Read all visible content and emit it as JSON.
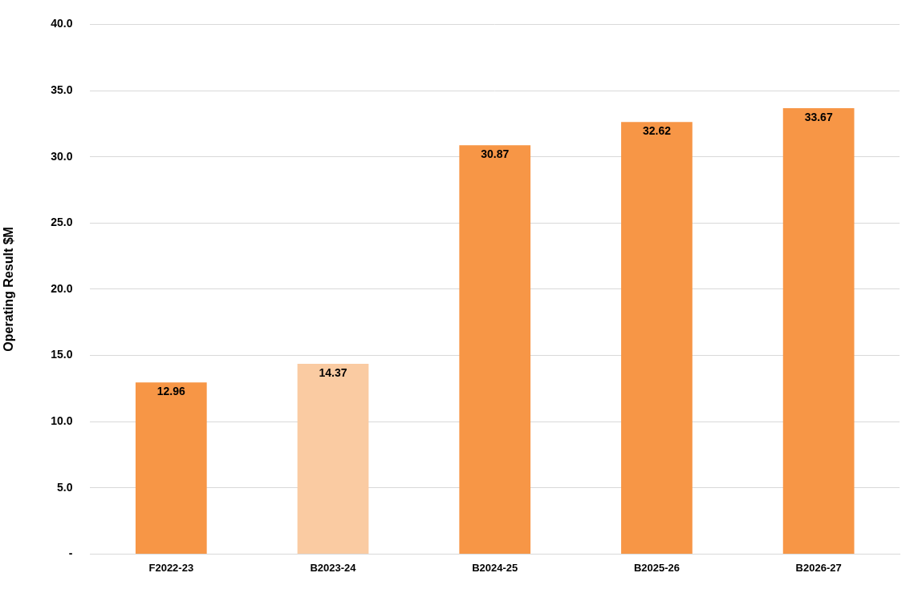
{
  "chart_data": {
    "type": "bar",
    "y_label": "Operating Result $M",
    "categories": [
      "F2022-23",
      "B2023-24",
      "B2024-25",
      "B2025-26",
      "B2026-27"
    ],
    "values": [
      12.96,
      14.37,
      30.87,
      32.62,
      33.67
    ],
    "colors": [
      "#f79646",
      "#facba2",
      "#f79646",
      "#f79646",
      "#f79646"
    ],
    "ylim": [
      0,
      40
    ],
    "yticks": [
      {
        "value": 0,
        "label": "-"
      },
      {
        "value": 5,
        "label": "5.0"
      },
      {
        "value": 10,
        "label": "10.0"
      },
      {
        "value": 15,
        "label": "15.0"
      },
      {
        "value": 20,
        "label": "20.0"
      },
      {
        "value": 25,
        "label": "25.0"
      },
      {
        "value": 30,
        "label": "30.0"
      },
      {
        "value": 35,
        "label": "35.0"
      },
      {
        "value": 40,
        "label": "40.0"
      }
    ],
    "grid": true,
    "data_labels": true
  }
}
